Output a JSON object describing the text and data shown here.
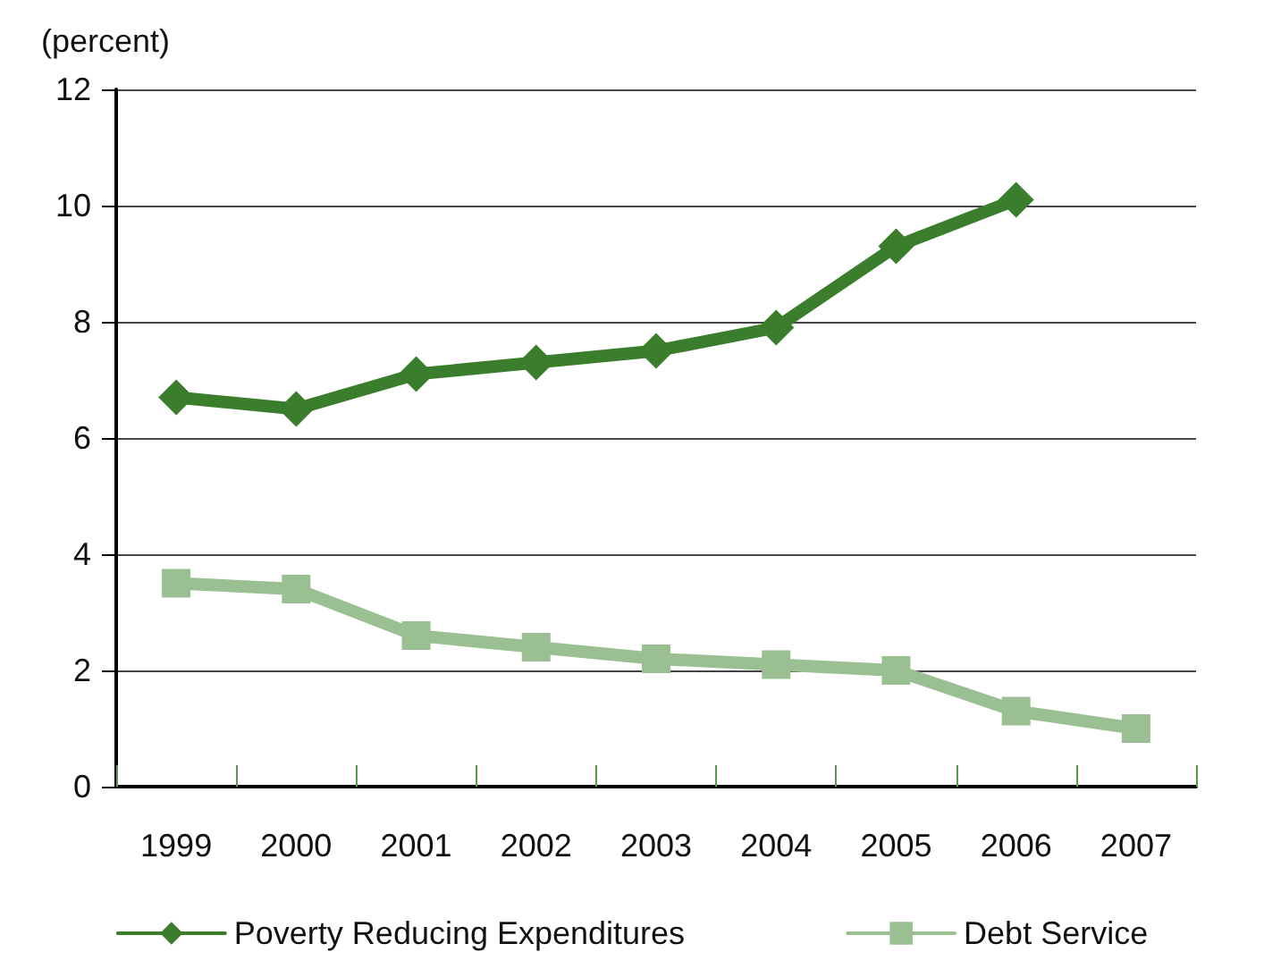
{
  "chart_data": {
    "type": "line",
    "ylabel": "(percent)",
    "categories": [
      "1999",
      "2000",
      "2001",
      "2002",
      "2003",
      "2004",
      "2005",
      "2006",
      "2007"
    ],
    "series": [
      {
        "name": "Poverty Reducing Expenditures",
        "color": "#3a7d2c",
        "marker": "diamond",
        "values": [
          6.7,
          6.5,
          7.1,
          7.3,
          7.5,
          7.9,
          9.3,
          10.1,
          null
        ]
      },
      {
        "name": "Debt Service",
        "color": "#99bf92",
        "marker": "square",
        "values": [
          3.5,
          3.4,
          2.6,
          2.4,
          2.2,
          2.1,
          2.0,
          1.3,
          1.0
        ]
      }
    ],
    "ylim": [
      0,
      12
    ],
    "yticks": [
      0,
      2,
      4,
      6,
      8,
      10,
      12
    ],
    "grid": "y",
    "legend": "bottom",
    "line_style": "solid"
  }
}
